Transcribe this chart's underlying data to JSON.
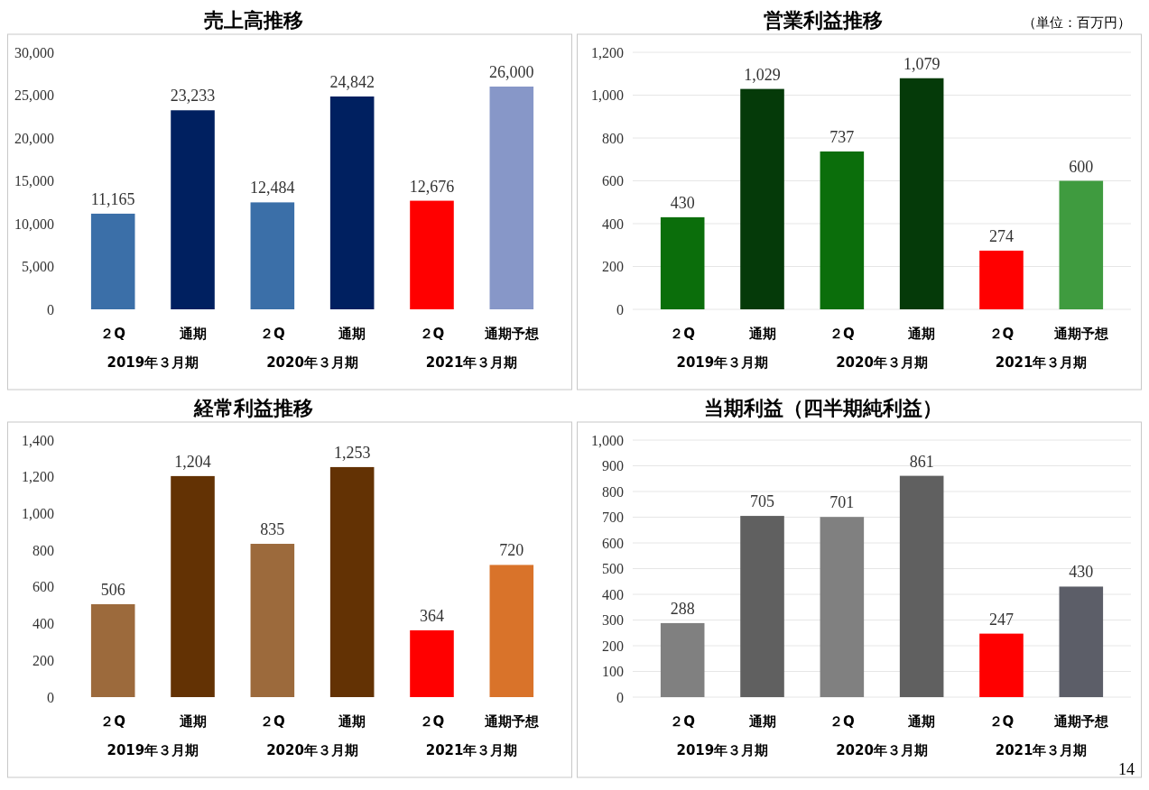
{
  "chart_data": [
    {
      "type": "bar",
      "title": "売上高推移",
      "categories": [
        "２Q",
        "通期",
        "２Q",
        "通期",
        "２Q",
        "通期予想"
      ],
      "values": [
        11165,
        23233,
        12484,
        24842,
        12676,
        26000
      ],
      "colors": [
        "#3b6fa8",
        "#002060",
        "#3b6fa8",
        "#002060",
        "#ff0000",
        "#8797c8"
      ],
      "ylim": [
        0,
        30000
      ],
      "yticks": [
        {
          "value": 0,
          "label": "0"
        },
        {
          "value": 5000,
          "label": "5,000"
        },
        {
          "value": 10000,
          "label": "10,000"
        },
        {
          "value": 15000,
          "label": "15,000"
        },
        {
          "value": 20000,
          "label": "20,000"
        },
        {
          "value": 25000,
          "label": "25,000"
        },
        {
          "value": 30000,
          "label": "30,000"
        }
      ],
      "data_labels": true,
      "value_labels": [
        "11,165",
        "23,233",
        "12,484",
        "24,842",
        "12,676",
        "26,000"
      ],
      "annotations": [
        "2019年３月期",
        "2020年３月期",
        "2021年３月期"
      ]
    },
    {
      "type": "bar",
      "title": "営業利益推移",
      "subtitle": "（単位：百万円）",
      "categories": [
        "２Q",
        "通期",
        "２Q",
        "通期",
        "２Q",
        "通期予想"
      ],
      "values": [
        430,
        1029,
        737,
        1079,
        274,
        600
      ],
      "colors": [
        "#0b6e0b",
        "#053a09",
        "#0b6e0b",
        "#053a09",
        "#ff0000",
        "#3f9b3f"
      ],
      "ylim": [
        0,
        1200
      ],
      "yticks": [
        {
          "value": 0,
          "label": "0"
        },
        {
          "value": 200,
          "label": "200"
        },
        {
          "value": 400,
          "label": "400"
        },
        {
          "value": 600,
          "label": "600"
        },
        {
          "value": 800,
          "label": "800"
        },
        {
          "value": 1000,
          "label": "1,000"
        },
        {
          "value": 1200,
          "label": "1,200"
        }
      ],
      "grid": "y",
      "data_labels": true,
      "value_labels": [
        "430",
        "1,029",
        "737",
        "1,079",
        "274",
        "600"
      ],
      "annotations": [
        "2019年３月期",
        "2020年３月期",
        "2021年３月期"
      ]
    },
    {
      "type": "bar",
      "title": "経常利益推移",
      "categories": [
        "２Q",
        "通期",
        "２Q",
        "通期",
        "２Q",
        "通期予想"
      ],
      "values": [
        506,
        1204,
        835,
        1253,
        364,
        720
      ],
      "colors": [
        "#9c6a3c",
        "#633204",
        "#9c6a3c",
        "#633204",
        "#ff0000",
        "#d9732a"
      ],
      "ylim": [
        0,
        1400
      ],
      "yticks": [
        {
          "value": 0,
          "label": "0"
        },
        {
          "value": 200,
          "label": "200"
        },
        {
          "value": 400,
          "label": "400"
        },
        {
          "value": 600,
          "label": "600"
        },
        {
          "value": 800,
          "label": "800"
        },
        {
          "value": 1000,
          "label": "1,000"
        },
        {
          "value": 1200,
          "label": "1,200"
        },
        {
          "value": 1400,
          "label": "1,400"
        }
      ],
      "data_labels": true,
      "value_labels": [
        "506",
        "1,204",
        "835",
        "1,253",
        "364",
        "720"
      ],
      "annotations": [
        "2019年３月期",
        "2020年３月期",
        "2021年３月期"
      ]
    },
    {
      "type": "bar",
      "title": "当期利益（四半期純利益）",
      "categories": [
        "２Q",
        "通期",
        "２Q",
        "通期",
        "２Q",
        "通期予想"
      ],
      "values": [
        288,
        705,
        701,
        861,
        247,
        430
      ],
      "colors": [
        "#808080",
        "#606060",
        "#808080",
        "#606060",
        "#ff0000",
        "#5c5e68"
      ],
      "ylim": [
        0,
        1000
      ],
      "yticks": [
        0,
        100,
        200,
        300,
        400,
        500,
        600,
        700,
        800,
        900,
        {
          "value": 1000,
          "label": "1,000"
        }
      ],
      "grid": "y",
      "data_labels": true,
      "value_labels": [
        "288",
        "705",
        "701",
        "861",
        "247",
        "430"
      ],
      "annotations": [
        "2019年３月期",
        "2020年３月期",
        "2021年３月期",
        "14"
      ]
    }
  ]
}
